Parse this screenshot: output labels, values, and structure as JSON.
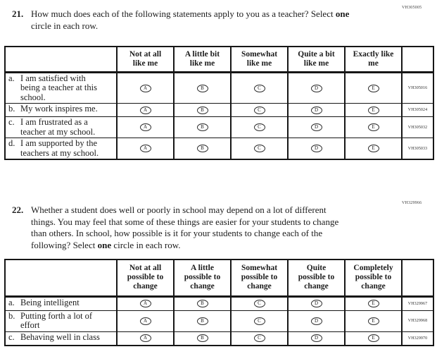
{
  "option_letters": [
    "A",
    "B",
    "C",
    "D",
    "E"
  ],
  "q21": {
    "number": "21.",
    "code": "VH305005",
    "prompt": {
      "pre": "How much does each of the following statements apply to you as a teacher? Select ",
      "bold": "one",
      "post": "\ncircle in each row."
    },
    "table": {
      "columns": [
        "Not at all\nlike me",
        "A little bit\nlike me",
        "Somewhat\nlike me",
        "Quite a bit\nlike me",
        "Exactly like\nme"
      ],
      "rows": [
        {
          "label": "a.",
          "text": "I am satisfied with\nbeing a teacher at this\nschool.",
          "code": "VH305016"
        },
        {
          "label": "b.",
          "text": "My work inspires me.",
          "code": "VH305024"
        },
        {
          "label": "c.",
          "text": "I am frustrated as a\nteacher at my school.",
          "code": "VH305032"
        },
        {
          "label": "d.",
          "text": "I am supported by the\nteachers at my school.",
          "code": "VH305033"
        }
      ]
    }
  },
  "q22": {
    "number": "22.",
    "code": "VH329966",
    "prompt": {
      "pre": "Whether a student does well or poorly in school may depend on a lot of different\nthings. You may feel that some of these things are easier for your students to change\nthan others. In school, how possible is it for your students to change each of the\nfollowing? Select ",
      "bold": "one",
      "post": " circle in each row."
    },
    "table": {
      "columns": [
        "Not at all\npossible to\nchange",
        "A little\npossible to\nchange",
        "Somewhat\npossible to\nchange",
        "Quite\npossible to\nchange",
        "Completely\npossible to\nchange"
      ],
      "rows": [
        {
          "label": "a.",
          "text": "Being intelligent",
          "code": "VH329967"
        },
        {
          "label": "b.",
          "text": "Putting forth a lot of\neffort",
          "code": "VH329968"
        },
        {
          "label": "c.",
          "text": "Behaving well in class",
          "code": "VH329970"
        }
      ]
    }
  }
}
